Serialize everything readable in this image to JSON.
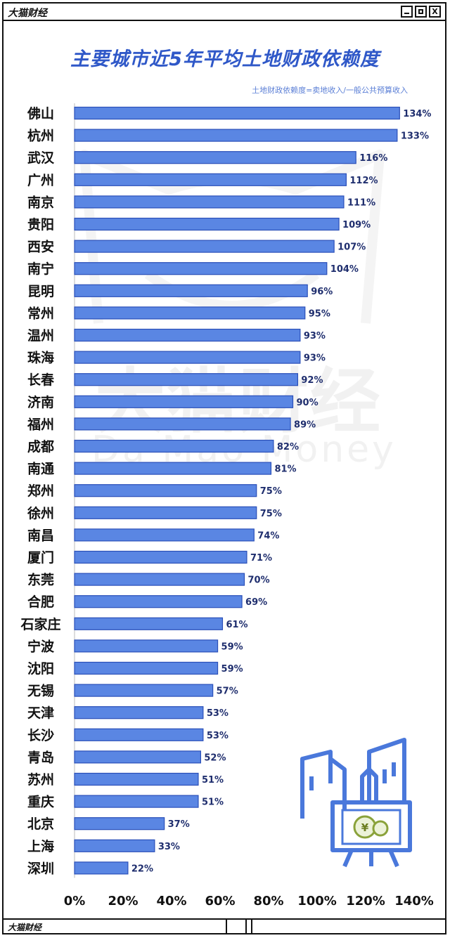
{
  "window": {
    "brand": "大猫财经",
    "min_icon": "minimize-icon",
    "max_icon": "maximize-icon",
    "close_label": "X"
  },
  "watermark": {
    "cn": "大猫财经",
    "en": "Da Mao Money"
  },
  "footer": {
    "brand": "大猫财经"
  },
  "colors": {
    "bar": "#5a86e3",
    "bar_stroke": "#2a4fb8",
    "title": "#2f58c8",
    "note": "#5b7fd6"
  },
  "chart_data": {
    "type": "bar",
    "orientation": "horizontal",
    "title": "主要城市近5年平均土地财政依赖度",
    "subtitle": "土地财政依赖度=卖地收入/一般公共预算收入",
    "categories": [
      "佛山",
      "杭州",
      "武汉",
      "广州",
      "南京",
      "贵阳",
      "西安",
      "南宁",
      "昆明",
      "常州",
      "温州",
      "珠海",
      "长春",
      "济南",
      "福州",
      "成都",
      "南通",
      "郑州",
      "徐州",
      "南昌",
      "厦门",
      "东莞",
      "合肥",
      "石家庄",
      "宁波",
      "沈阳",
      "无锡",
      "天津",
      "长沙",
      "青岛",
      "苏州",
      "重庆",
      "北京",
      "上海",
      "深圳"
    ],
    "values": [
      134,
      133,
      116,
      112,
      111,
      109,
      107,
      104,
      96,
      95,
      93,
      93,
      92,
      90,
      89,
      82,
      81,
      75,
      75,
      74,
      71,
      70,
      69,
      61,
      59,
      59,
      57,
      53,
      53,
      52,
      51,
      51,
      37,
      33,
      22
    ],
    "value_labels": [
      "134%",
      "133%",
      "116%",
      "112%",
      "111%",
      "109%",
      "107%",
      "104%",
      "96%",
      "95%",
      "93%",
      "93%",
      "92%",
      "90%",
      "89%",
      "82%",
      "81%",
      "75%",
      "75%",
      "74%",
      "71%",
      "70%",
      "69%",
      "61%",
      "59%",
      "59%",
      "57%",
      "53%",
      "53%",
      "52%",
      "51%",
      "51%",
      "37%",
      "33%",
      "22%"
    ],
    "xticks": [
      "0%",
      "20%",
      "40%",
      "60%",
      "80%",
      "100%",
      "120%",
      "140%"
    ],
    "xlim": [
      0,
      140
    ],
    "grid": false
  }
}
